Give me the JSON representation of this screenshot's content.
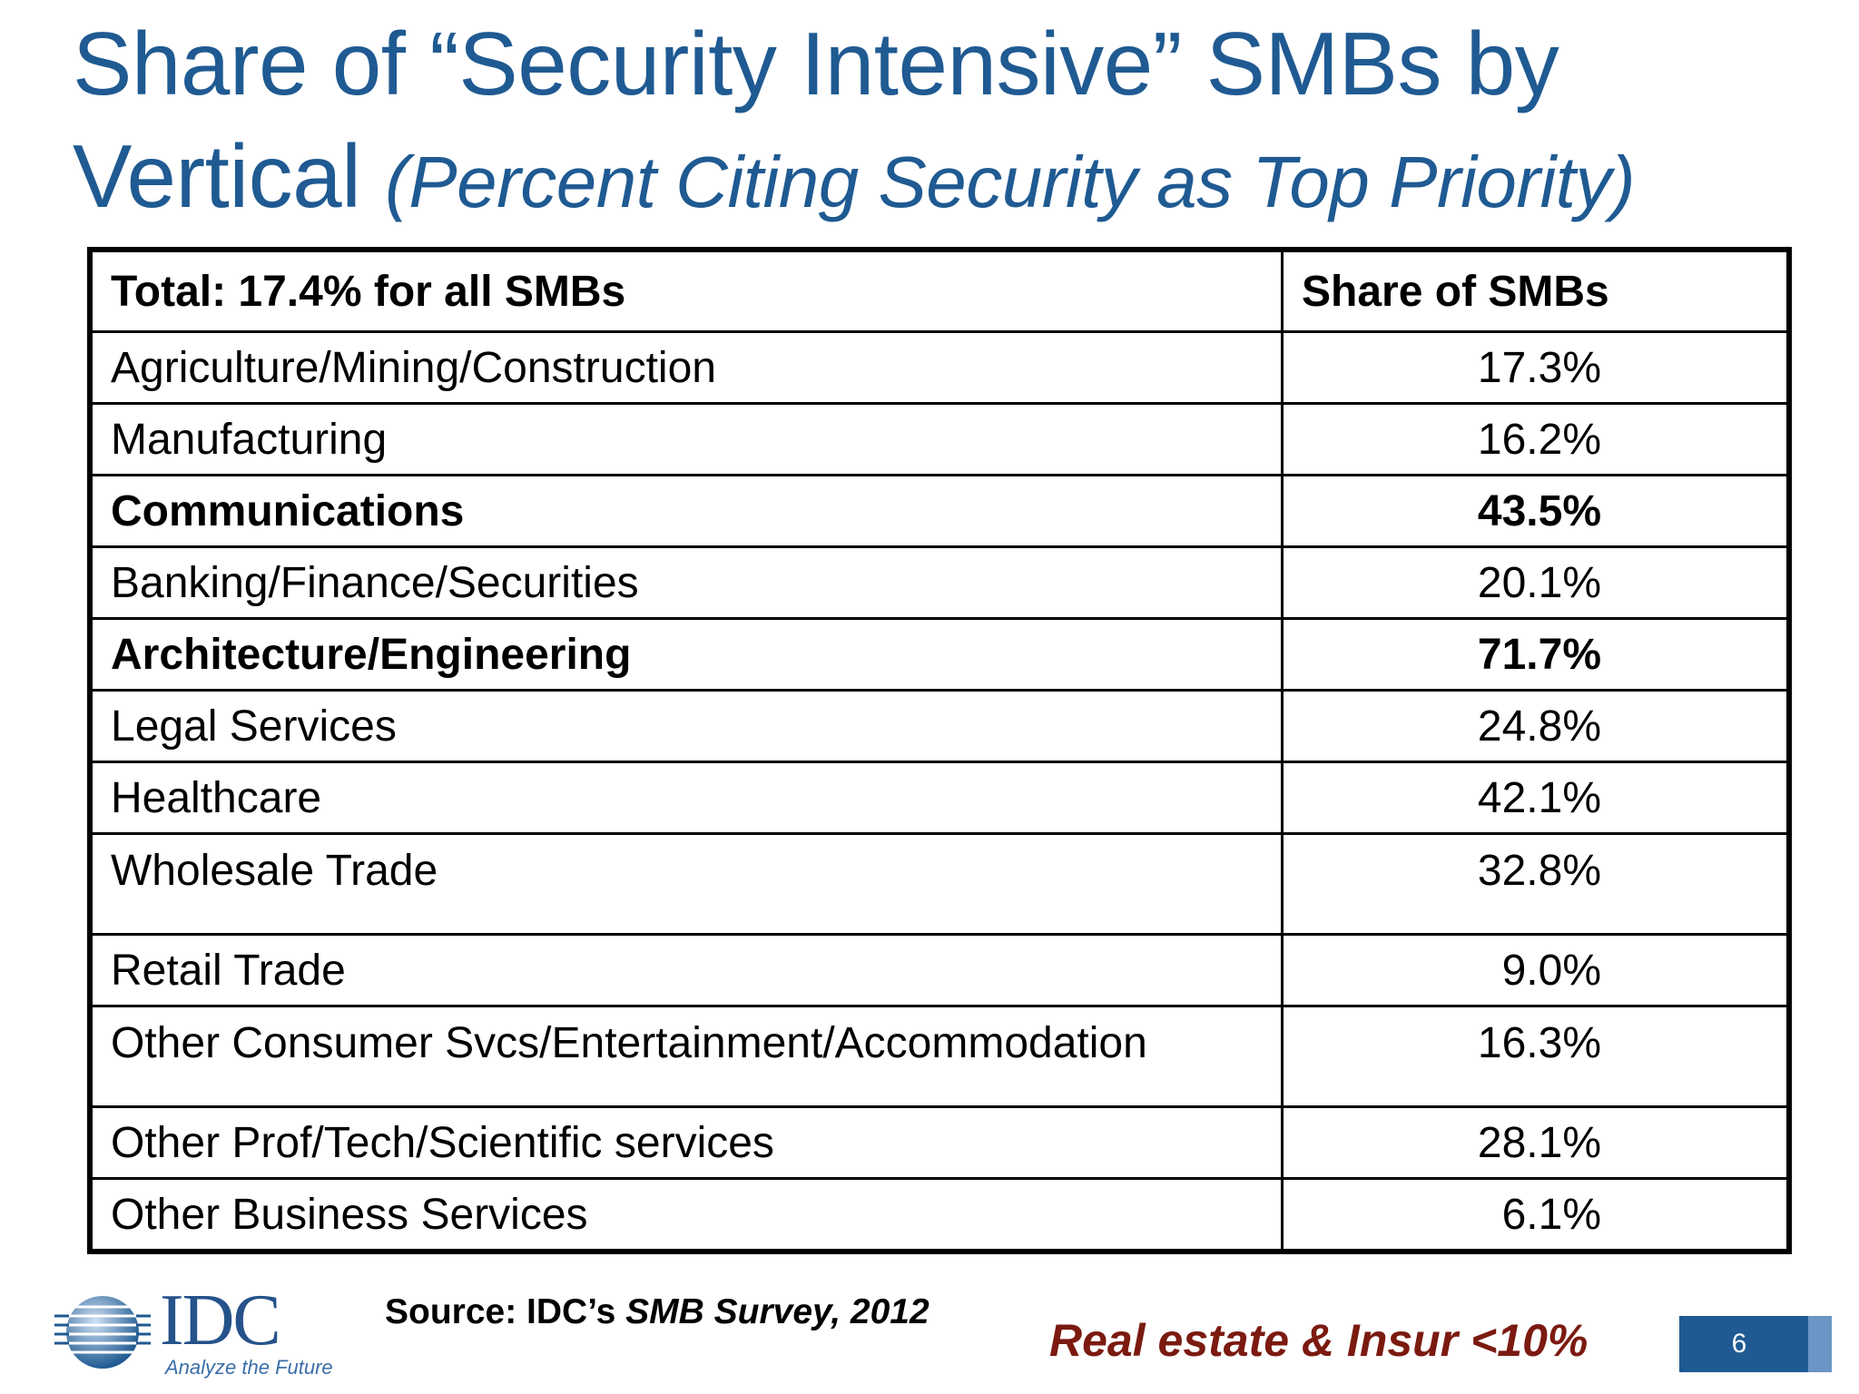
{
  "title": {
    "main": "Share of “Security Intensive” SMBs by Vertical",
    "sub": "(Percent Citing Security as Top Priority)"
  },
  "table": {
    "header": {
      "label": "Total: 17.4% for all SMBs",
      "value": "Share of SMBs"
    },
    "rows": [
      {
        "label": "Agriculture/Mining/Construction",
        "value": "17.3%"
      },
      {
        "label": "Manufacturing",
        "value": "16.2%"
      },
      {
        "label": "Communications",
        "value": "43.5%"
      },
      {
        "label": "Banking/Finance/Securities",
        "value": "20.1%"
      },
      {
        "label": "Architecture/Engineering",
        "value": "71.7%"
      },
      {
        "label": "Legal Services",
        "value": "24.8%"
      },
      {
        "label": "Healthcare",
        "value": "42.1%"
      },
      {
        "label": "Wholesale Trade",
        "value": "32.8%"
      },
      {
        "label": "Retail Trade",
        "value": "9.0%"
      },
      {
        "label": "Other Consumer Svcs/Entertainment/Accommodation",
        "value": "16.3%"
      },
      {
        "label": "Other Prof/Tech/Scientific services",
        "value": "28.1%"
      },
      {
        "label": "Other Business Services",
        "value": "6.1%"
      }
    ]
  },
  "logo": {
    "name": "IDC",
    "tagline": "Analyze the Future"
  },
  "source": {
    "prefix": "Source: IDC’s ",
    "title": "SMB Survey, 2012"
  },
  "note": "Real estate & Insur <10%",
  "page_number": "6",
  "colors": {
    "title": "#1f5a92",
    "note": "#7b1a10",
    "page_box": "#1f5a92"
  }
}
